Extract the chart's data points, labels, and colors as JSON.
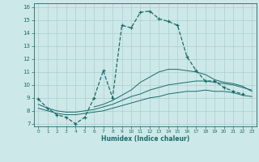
{
  "xlabel": "Humidex (Indice chaleur)",
  "background_color": "#cde8e8",
  "grid_color": "#aacfcf",
  "line_color": "#1a6b6b",
  "xlim": [
    -0.5,
    23.5
  ],
  "ylim": [
    6.8,
    16.3
  ],
  "xticks": [
    0,
    1,
    2,
    3,
    4,
    5,
    6,
    7,
    8,
    9,
    10,
    11,
    12,
    13,
    14,
    15,
    16,
    17,
    18,
    19,
    20,
    21,
    22,
    23
  ],
  "yticks": [
    7,
    8,
    9,
    10,
    11,
    12,
    13,
    14,
    15,
    16
  ],
  "line1_x": [
    0,
    1,
    2,
    3,
    4,
    5,
    6,
    7,
    8,
    9,
    10,
    11,
    12,
    13,
    14,
    15,
    16,
    17,
    18,
    19,
    20,
    21,
    22
  ],
  "line1_y": [
    8.9,
    8.2,
    7.7,
    7.5,
    7.0,
    7.5,
    9.0,
    11.1,
    9.0,
    14.6,
    14.4,
    15.6,
    15.7,
    15.1,
    14.9,
    14.6,
    12.2,
    11.1,
    10.3,
    10.3,
    9.8,
    9.5,
    9.3
  ],
  "line2_x": [
    0,
    1,
    2,
    3,
    4,
    5,
    6,
    7,
    8,
    9,
    10,
    11,
    12,
    13,
    14,
    15,
    16,
    17,
    18,
    19,
    20,
    21,
    22,
    23
  ],
  "line2_y": [
    8.2,
    8.0,
    7.8,
    7.7,
    7.7,
    7.8,
    7.9,
    8.0,
    8.2,
    8.4,
    8.6,
    8.8,
    9.0,
    9.1,
    9.3,
    9.4,
    9.5,
    9.5,
    9.6,
    9.5,
    9.5,
    9.4,
    9.2,
    9.1
  ],
  "line3_x": [
    0,
    1,
    2,
    3,
    4,
    5,
    6,
    7,
    8,
    9,
    10,
    11,
    12,
    13,
    14,
    15,
    16,
    17,
    18,
    19,
    20,
    21,
    22,
    23
  ],
  "line3_y": [
    8.5,
    8.2,
    8.0,
    7.9,
    7.9,
    8.0,
    8.1,
    8.3,
    8.5,
    8.8,
    9.1,
    9.3,
    9.6,
    9.8,
    10.0,
    10.1,
    10.2,
    10.3,
    10.3,
    10.2,
    10.1,
    10.0,
    9.8,
    9.6
  ],
  "line4_x": [
    6,
    7,
    8,
    9,
    10,
    11,
    12,
    13,
    14,
    15,
    16,
    17,
    18,
    19,
    20,
    21,
    22,
    23
  ],
  "line4_y": [
    8.3,
    8.5,
    8.8,
    9.2,
    9.6,
    10.2,
    10.6,
    11.0,
    11.2,
    11.2,
    11.1,
    11.0,
    10.8,
    10.4,
    10.2,
    10.1,
    9.9,
    9.5
  ]
}
